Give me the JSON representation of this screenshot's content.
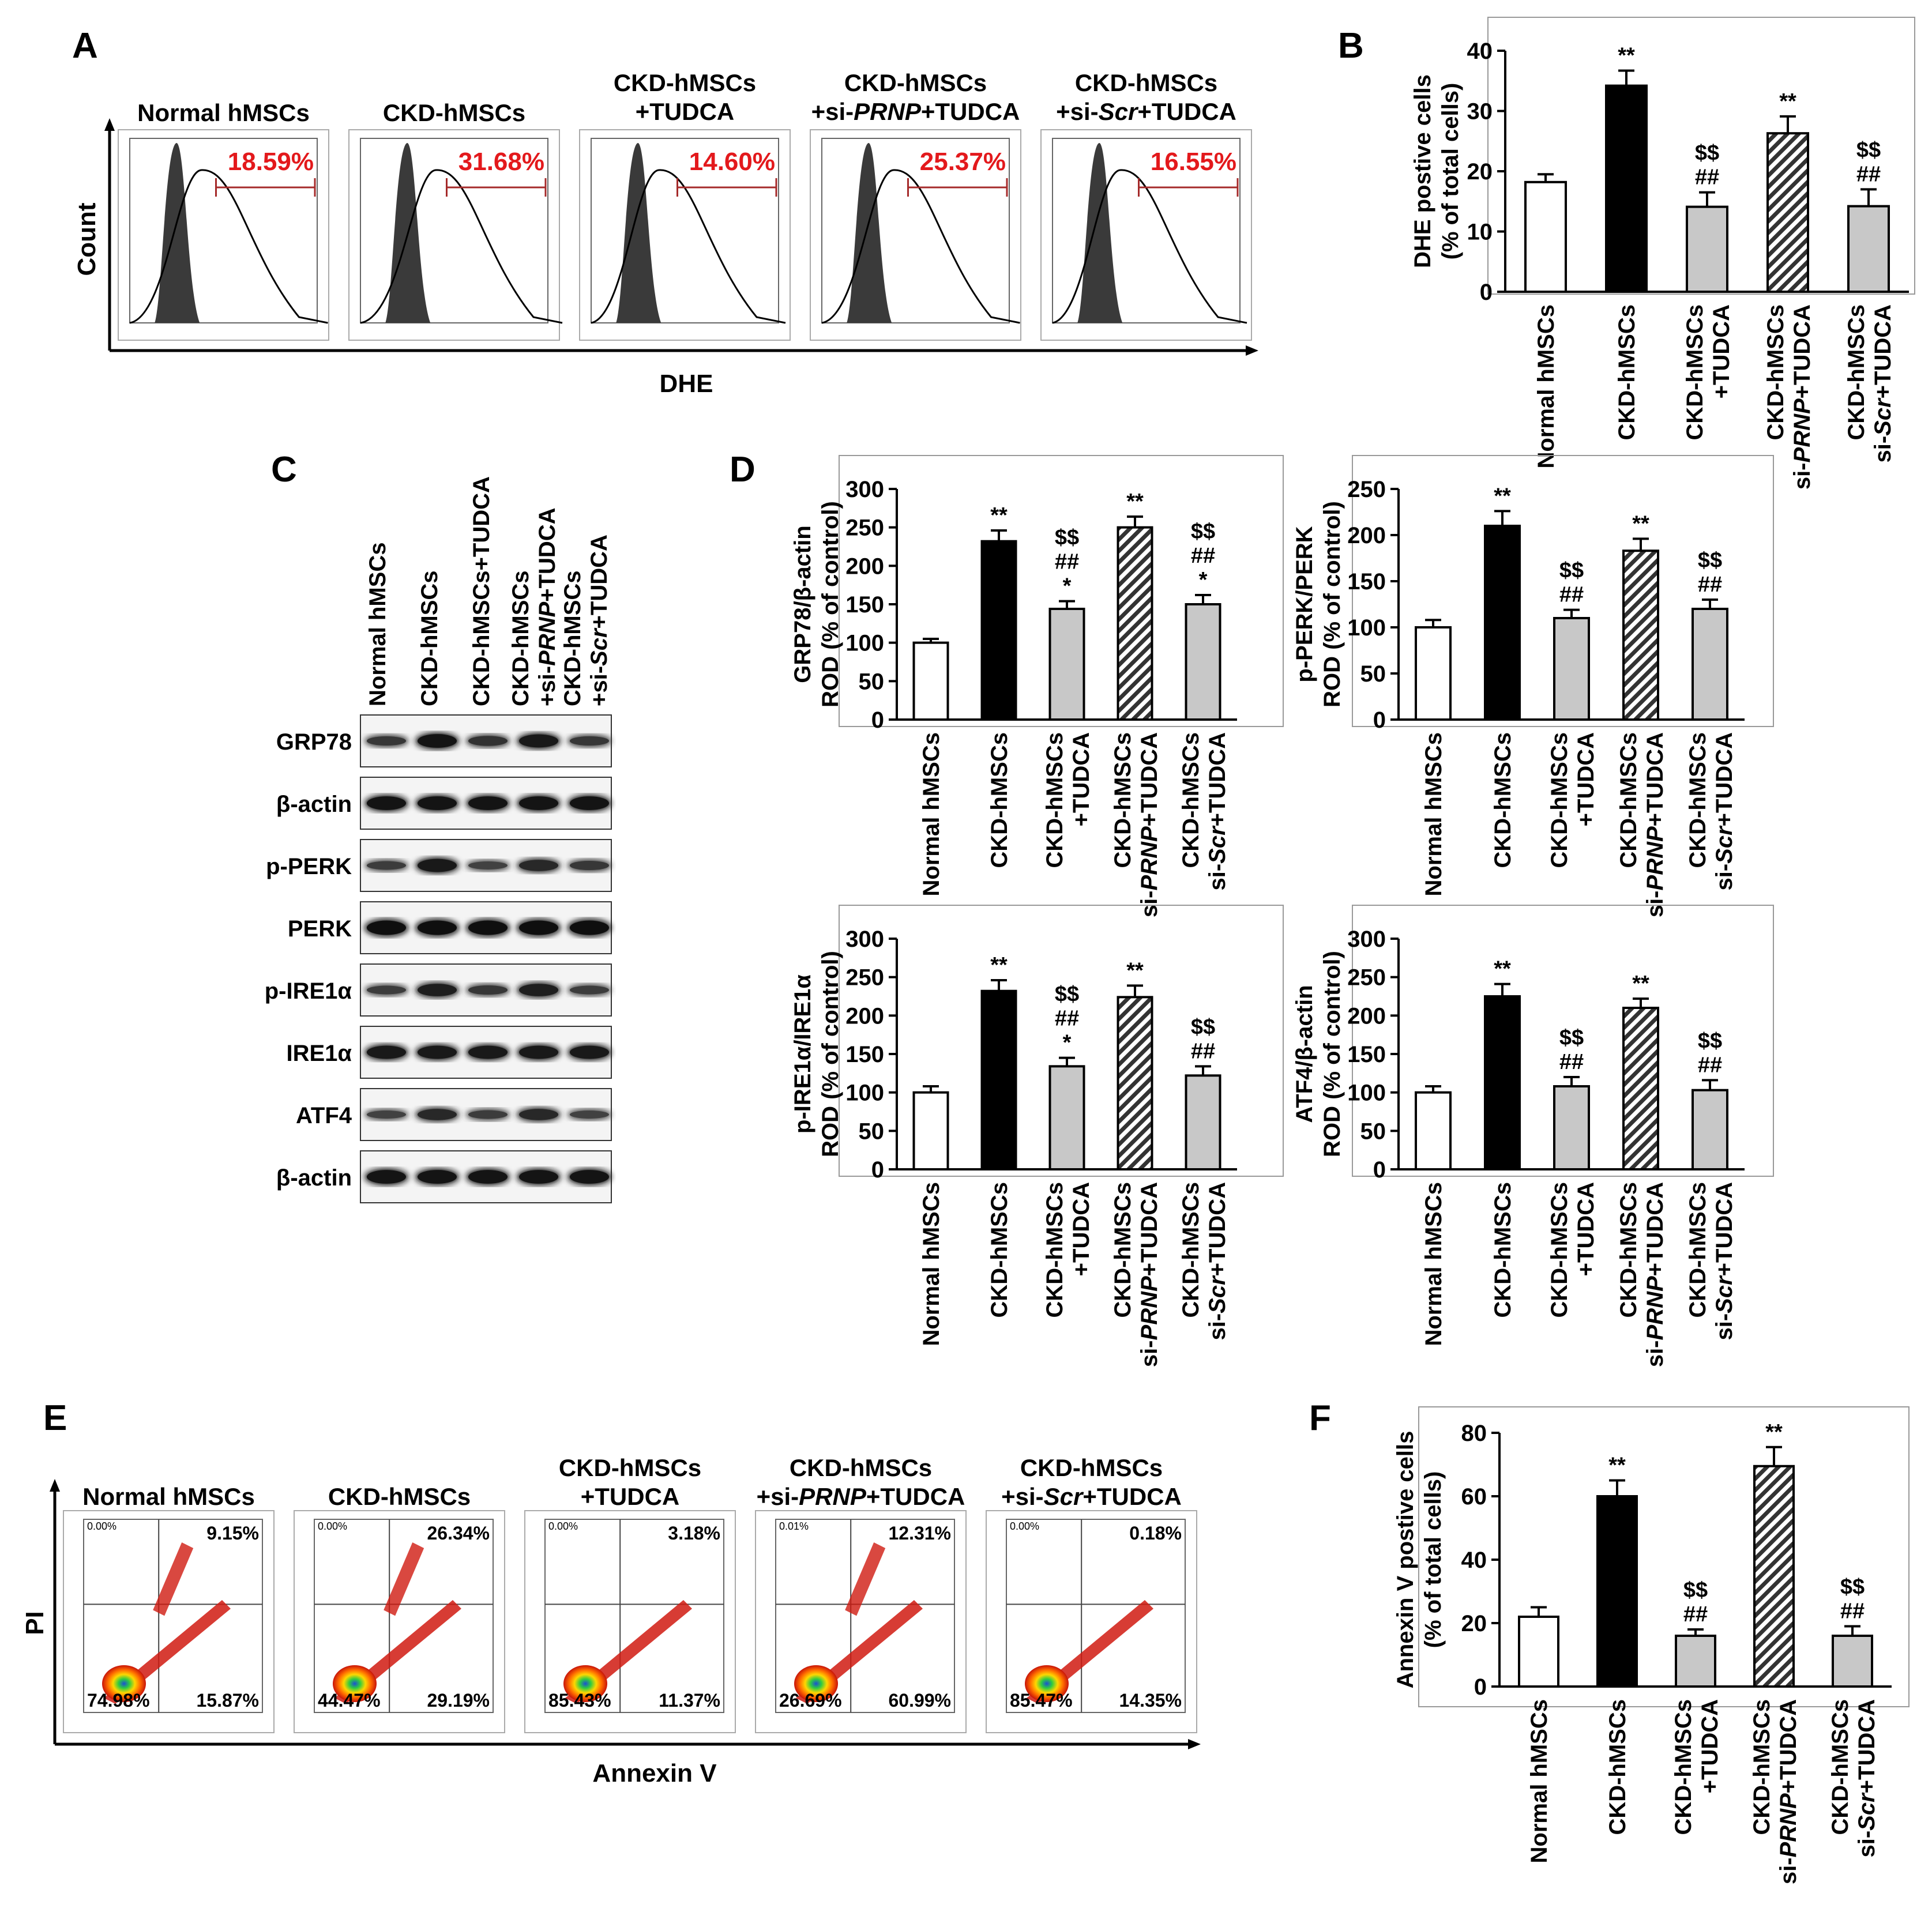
{
  "panel_letters": [
    "A",
    "B",
    "C",
    "D",
    "E",
    "F"
  ],
  "groups": [
    "Normal hMSCs",
    "CKD-hMSCs",
    "CKD-hMSCs +TUDCA",
    "CKD-hMSCs +si-PRNP+TUDCA",
    "CKD-hMSCs +si-Scr+TUDCA"
  ],
  "panel_a": {
    "ylabel": "Count",
    "xlabel": "DHE",
    "histograms": [
      {
        "title_lines": [
          "Normal hMSCs"
        ],
        "percent": "18.59%"
      },
      {
        "title_lines": [
          "CKD-hMSCs"
        ],
        "percent": "31.68%"
      },
      {
        "title_lines": [
          "CKD-hMSCs",
          "+TUDCA"
        ],
        "percent": "14.60%"
      },
      {
        "title_lines": [
          "CKD-hMSCs",
          "+si-PRNP+TUDCA"
        ],
        "percent": "25.37%"
      },
      {
        "title_lines": [
          "CKD-hMSCs",
          "+si-Scr+TUDCA"
        ],
        "percent": "16.55%"
      }
    ]
  },
  "panel_c": {
    "lane_labels": [
      "Normal hMSCs",
      "CKD-hMSCs",
      "CKD-hMSCs+TUDCA",
      "CKD-hMSCs +si-PRNP+TUDCA",
      "CKD-hMSCs +si-Scr+TUDCA"
    ],
    "blots": [
      {
        "label": "GRP78",
        "intensity": [
          0.55,
          0.9,
          0.6,
          0.85,
          0.55
        ]
      },
      {
        "label": "β-actin",
        "intensity": [
          0.9,
          0.9,
          0.9,
          0.9,
          0.9
        ]
      },
      {
        "label": "p-PERK",
        "intensity": [
          0.5,
          0.85,
          0.45,
          0.7,
          0.55
        ]
      },
      {
        "label": "PERK",
        "intensity": [
          0.95,
          0.95,
          0.95,
          0.95,
          0.95
        ]
      },
      {
        "label": "p-IRE1α",
        "intensity": [
          0.5,
          0.8,
          0.55,
          0.8,
          0.5
        ]
      },
      {
        "label": "IRE1α",
        "intensity": [
          0.85,
          0.85,
          0.85,
          0.85,
          0.85
        ]
      },
      {
        "label": "ATF4",
        "intensity": [
          0.45,
          0.7,
          0.5,
          0.7,
          0.45
        ]
      },
      {
        "label": "β-actin",
        "intensity": [
          0.9,
          0.9,
          0.9,
          0.9,
          0.9
        ]
      }
    ]
  },
  "panel_e": {
    "ylabel": "PI",
    "xlabel": "Annexin V",
    "plots": [
      {
        "title_lines": [
          "Normal hMSCs"
        ],
        "ul": "0.00%",
        "ur": "9.15%",
        "ll": "74.98%",
        "lr": "15.87%"
      },
      {
        "title_lines": [
          "CKD-hMSCs"
        ],
        "ul": "0.00%",
        "ur": "26.34%",
        "ll": "44.47%",
        "lr": "29.19%"
      },
      {
        "title_lines": [
          "CKD-hMSCs",
          "+TUDCA"
        ],
        "ul": "0.00%",
        "ur": "3.18%",
        "ll": "85.43%",
        "lr": "11.37%"
      },
      {
        "title_lines": [
          "CKD-hMSCs",
          "+si-PRNP+TUDCA"
        ],
        "ul": "0.01%",
        "ur": "12.31%",
        "ll": "26.69%",
        "lr": "60.99%"
      },
      {
        "title_lines": [
          "CKD-hMSCs",
          "+si-Scr+TUDCA"
        ],
        "ul": "0.00%",
        "ur": "0.18%",
        "ll": "85.47%",
        "lr": "14.35%"
      }
    ]
  },
  "chart_data": [
    {
      "panel": "B",
      "type": "bar",
      "ylabel_lines": [
        "DHE postive cells",
        "(% of total cells)"
      ],
      "categories": [
        "Normal hMSCs",
        "CKD-hMSCs",
        "CKD-hMSCs +TUDCA",
        "CKD-hMSCs si-PRNP+TUDCA",
        "CKD-hMSCs si-Scr+TUDCA"
      ],
      "values": [
        18.2,
        34.2,
        14.1,
        26.3,
        14.2
      ],
      "errors": [
        1.3,
        2.5,
        2.4,
        2.8,
        2.8
      ],
      "ylim": [
        0,
        40
      ],
      "yticks": [
        0,
        10,
        20,
        30,
        40
      ],
      "annotations": [
        [],
        [
          "**"
        ],
        [
          "$$",
          "##"
        ],
        [
          "**"
        ],
        [
          "$$",
          "##"
        ]
      ]
    },
    {
      "panel": "D",
      "type": "bar",
      "ylabel_lines": [
        "GRP78/β-actin",
        "ROD (% of control)"
      ],
      "categories": [
        "Normal hMSCs",
        "CKD-hMSCs",
        "CKD-hMSCs +TUDCA",
        "CKD-hMSCs si-PRNP+TUDCA",
        "CKD-hMSCs si-Scr+TUDCA"
      ],
      "values": [
        100,
        232,
        144,
        250,
        150
      ],
      "errors": [
        5,
        14,
        10,
        14,
        12
      ],
      "ylim": [
        0,
        300
      ],
      "yticks": [
        0,
        50,
        100,
        150,
        200,
        250,
        300
      ],
      "annotations": [
        [],
        [
          "**"
        ],
        [
          "$$",
          "##",
          "*"
        ],
        [
          "**"
        ],
        [
          "$$",
          "##",
          "*"
        ]
      ]
    },
    {
      "panel": "D",
      "type": "bar",
      "ylabel_lines": [
        "p-PERK/PERK",
        "ROD (% of control)"
      ],
      "categories": [
        "Normal hMSCs",
        "CKD-hMSCs",
        "CKD-hMSCs +TUDCA",
        "CKD-hMSCs si-PRNP+TUDCA",
        "CKD-hMSCs si-Scr+TUDCA"
      ],
      "values": [
        100,
        210,
        110,
        183,
        120
      ],
      "errors": [
        8,
        16,
        9,
        13,
        10
      ],
      "ylim": [
        0,
        250
      ],
      "yticks": [
        0,
        50,
        100,
        150,
        200,
        250
      ],
      "annotations": [
        [],
        [
          "**"
        ],
        [
          "$$",
          "##"
        ],
        [
          "**"
        ],
        [
          "$$",
          "##"
        ]
      ]
    },
    {
      "panel": "D",
      "type": "bar",
      "ylabel_lines": [
        "p-IRE1α/IRE1α",
        "ROD (% of control)"
      ],
      "categories": [
        "Normal hMSCs",
        "CKD-hMSCs",
        "CKD-hMSCs +TUDCA",
        "CKD-hMSCs si-PRNP+TUDCA",
        "CKD-hMSCs si-Scr+TUDCA"
      ],
      "values": [
        100,
        232,
        134,
        224,
        122
      ],
      "errors": [
        8,
        14,
        11,
        15,
        12
      ],
      "ylim": [
        0,
        300
      ],
      "yticks": [
        0,
        50,
        100,
        150,
        200,
        250,
        300
      ],
      "annotations": [
        [],
        [
          "**"
        ],
        [
          "$$",
          "##",
          "*"
        ],
        [
          "**"
        ],
        [
          "$$",
          "##"
        ]
      ]
    },
    {
      "panel": "D",
      "type": "bar",
      "ylabel_lines": [
        "ATF4/β-actin",
        "ROD (% of control)"
      ],
      "categories": [
        "Normal hMSCs",
        "CKD-hMSCs",
        "CKD-hMSCs +TUDCA",
        "CKD-hMSCs si-PRNP+TUDCA",
        "CKD-hMSCs si-Scr+TUDCA"
      ],
      "values": [
        100,
        225,
        108,
        210,
        103
      ],
      "errors": [
        8,
        16,
        12,
        12,
        13
      ],
      "ylim": [
        0,
        300
      ],
      "yticks": [
        0,
        50,
        100,
        150,
        200,
        250,
        300
      ],
      "annotations": [
        [],
        [
          "**"
        ],
        [
          "$$",
          "##"
        ],
        [
          "**"
        ],
        [
          "$$",
          "##"
        ]
      ]
    },
    {
      "panel": "F",
      "type": "bar",
      "ylabel_lines": [
        "Annexin V postive cells",
        "(% of total cells)"
      ],
      "categories": [
        "Normal hMSCs",
        "CKD-hMSCs",
        "CKD-hMSCs +TUDCA",
        "CKD-hMSCs si-PRNP+TUDCA",
        "CKD-hMSCs si-Scr+TUDCA"
      ],
      "values": [
        22,
        60,
        16,
        69.5,
        16
      ],
      "errors": [
        3,
        5,
        2,
        6,
        3
      ],
      "ylim": [
        0,
        80
      ],
      "yticks": [
        0,
        20,
        40,
        60,
        80
      ],
      "annotations": [
        [],
        [
          "**"
        ],
        [
          "$$",
          "##"
        ],
        [
          "**"
        ],
        [
          "$$",
          "##"
        ]
      ]
    }
  ],
  "colors": {
    "normal": "#ffffff",
    "ckd": "#000000",
    "tudca": "#c8c8c8",
    "prnp_hatch": "#333333",
    "percent_red": "#e3191c"
  }
}
